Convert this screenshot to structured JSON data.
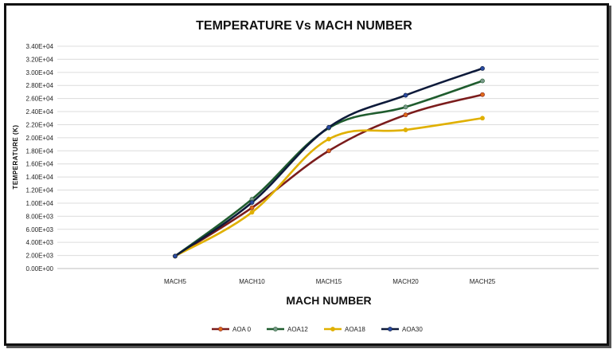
{
  "chart_data": {
    "type": "line",
    "title": "TEMPERATURE Vs MACH NUMBER",
    "xlabel": "MACH NUMBER",
    "ylabel": "TEMPERATURE (K)",
    "categories": [
      "MACH5",
      "MACH10",
      "MACH15",
      "MACH20",
      "MACH25"
    ],
    "ylim": [
      0,
      34000
    ],
    "yticks": [
      0,
      2000,
      4000,
      6000,
      8000,
      10000,
      12000,
      14000,
      16000,
      18000,
      20000,
      22000,
      24000,
      26000,
      28000,
      30000,
      32000,
      34000
    ],
    "ytick_labels": [
      "0.00E+00",
      "2.00E+03",
      "4.00E+03",
      "6.00E+03",
      "8.00E+03",
      "1.00E+04",
      "1.20E+04",
      "1.40E+04",
      "1.60E+04",
      "1.80E+04",
      "2.00E+04",
      "2.20E+04",
      "2.40E+04",
      "2.60E+04",
      "2.80E+04",
      "3.00E+04",
      "3.20E+04",
      "3.40E+04"
    ],
    "grid": true,
    "legend_position": "bottom",
    "series": [
      {
        "name": "AOA 0",
        "color": "#7b1c1c",
        "marker": "#e06a1a",
        "values": [
          1900,
          9300,
          18000,
          23500,
          26600
        ]
      },
      {
        "name": "AOA12",
        "color": "#1f5c2e",
        "marker": "#7a9a8a",
        "values": [
          1900,
          10600,
          21500,
          24700,
          28700
        ]
      },
      {
        "name": "AOA18",
        "color": "#e0b000",
        "marker": "#e0b000",
        "values": [
          1900,
          8600,
          19800,
          21200,
          23000
        ]
      },
      {
        "name": "AOA30",
        "color": "#0d1a3a",
        "marker": "#2a4aa0",
        "values": [
          1900,
          10100,
          21600,
          26500,
          30600
        ]
      }
    ]
  }
}
